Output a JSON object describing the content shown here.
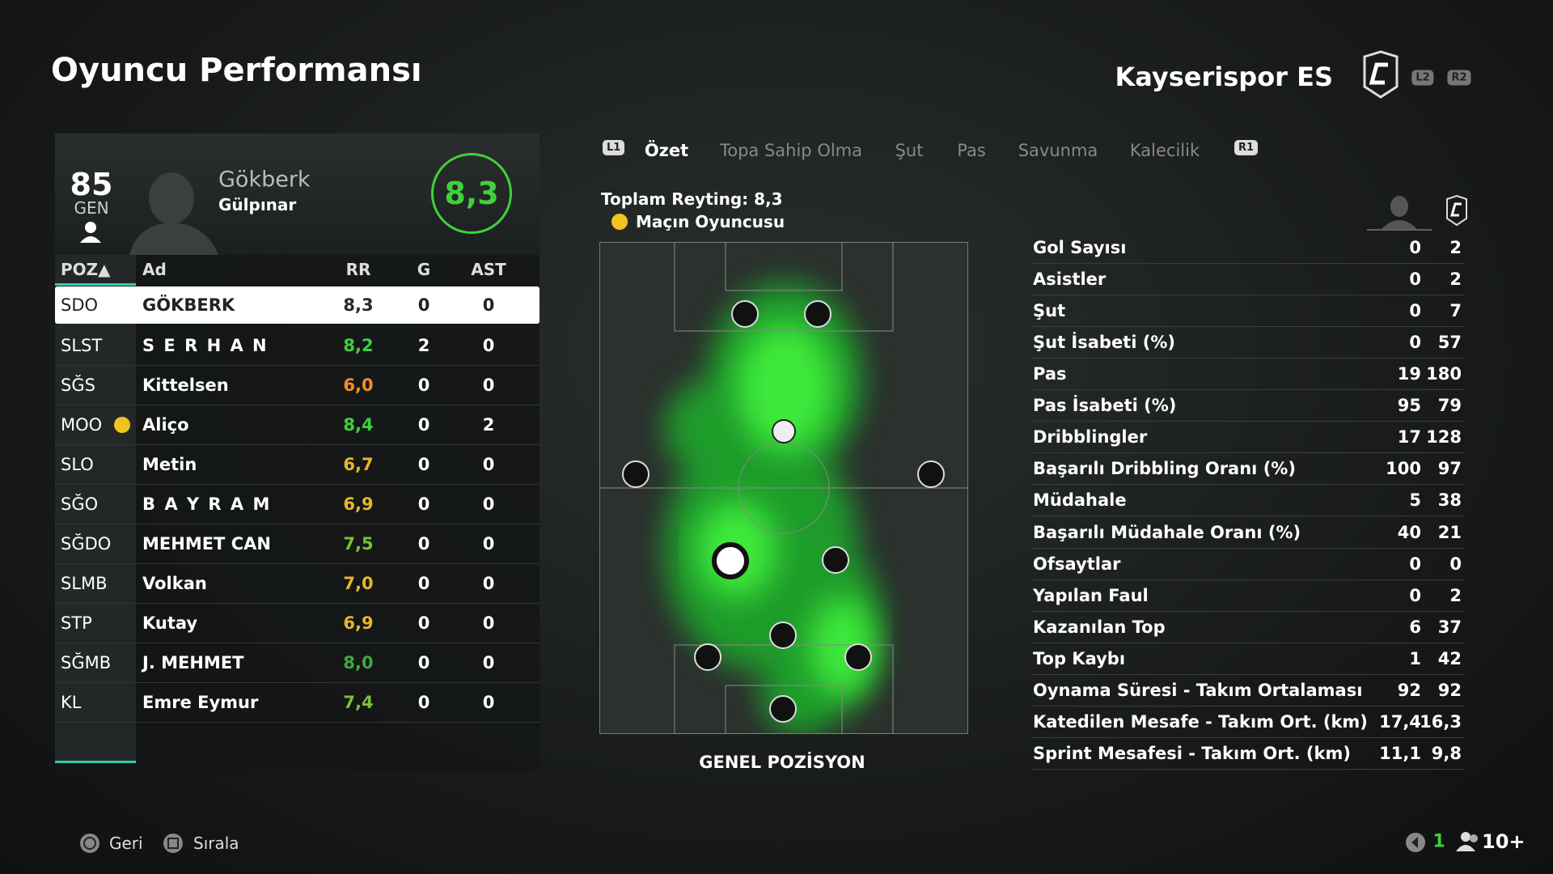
{
  "header": {
    "title": "Oyuncu Performansı",
    "team": "Kayserispor ES",
    "l2": "L2",
    "r2": "R2"
  },
  "player": {
    "overall": "85",
    "overall_label": "GEN",
    "first_name": "Gökberk",
    "last_name": "Gülpınar",
    "rating": "8,3"
  },
  "table": {
    "columns": [
      "POZ▲",
      "Ad",
      "RR",
      "G",
      "AST"
    ],
    "rows": [
      {
        "pos": "SDO",
        "name": "GÖKBERK",
        "rr": "8,3",
        "g": "0",
        "ast": "0",
        "color": "#2a2a2a"
      },
      {
        "pos": "SLST",
        "name": "S E R H A N",
        "rr": "8,2",
        "g": "2",
        "ast": "0",
        "color": "#3fd13a"
      },
      {
        "pos": "SĞS",
        "name": "Kittelsen",
        "rr": "6,0",
        "g": "0",
        "ast": "0",
        "color": "#f0902a"
      },
      {
        "pos": "MOO",
        "name": "Aliço",
        "rr": "8,4",
        "g": "0",
        "ast": "2",
        "color": "#3fd13a",
        "motm": true
      },
      {
        "pos": "SLO",
        "name": "Metin",
        "rr": "6,7",
        "g": "0",
        "ast": "0",
        "color": "#e8b62a"
      },
      {
        "pos": "SĞO",
        "name": "B A Y R A M",
        "rr": "6,9",
        "g": "0",
        "ast": "0",
        "color": "#e8b62a"
      },
      {
        "pos": "SĞDO",
        "name": "MEHMET CAN",
        "rr": "7,5",
        "g": "0",
        "ast": "0",
        "color": "#7bbf3a"
      },
      {
        "pos": "SLMB",
        "name": "Volkan",
        "rr": "7,0",
        "g": "0",
        "ast": "0",
        "color": "#e8b62a"
      },
      {
        "pos": "STP",
        "name": "Kutay",
        "rr": "6,9",
        "g": "0",
        "ast": "0",
        "color": "#e8b62a"
      },
      {
        "pos": "SĞMB",
        "name": "J. MEHMET",
        "rr": "8,0",
        "g": "0",
        "ast": "0",
        "color": "#3fa83a"
      },
      {
        "pos": "KL",
        "name": "Emre Eymur",
        "rr": "7,4",
        "g": "0",
        "ast": "0",
        "color": "#7bbf3a"
      }
    ]
  },
  "tabs": {
    "l1": "L1",
    "items": [
      "Özet",
      "Topa Sahip Olma",
      "Şut",
      "Pas",
      "Savunma",
      "Kalecilik"
    ],
    "r1": "R1"
  },
  "summary": {
    "total_rating": "Toplam Reyting: 8,3",
    "motm": "Maçın Oyuncusu"
  },
  "heatmap": {
    "caption": "GENEL POZİSYON"
  },
  "stats": {
    "rows": [
      [
        "Gol Sayısı",
        "0",
        "2"
      ],
      [
        "Asistler",
        "0",
        "2"
      ],
      [
        "Şut",
        "0",
        "7"
      ],
      [
        "Şut İsabeti (%)",
        "0",
        "57"
      ],
      [
        "Pas",
        "19",
        "180"
      ],
      [
        "Pas İsabeti (%)",
        "95",
        "79"
      ],
      [
        "Dribblingler",
        "17",
        "128"
      ],
      [
        "Başarılı Dribbling Oranı (%)",
        "100",
        "97"
      ],
      [
        "Müdahale",
        "5",
        "38"
      ],
      [
        "Başarılı Müdahale Oranı (%)",
        "40",
        "21"
      ],
      [
        "Ofsaytlar",
        "0",
        "0"
      ],
      [
        "Yapılan Faul",
        "0",
        "2"
      ],
      [
        "Kazanılan Top",
        "6",
        "37"
      ],
      [
        "Top Kaybı",
        "1",
        "42"
      ],
      [
        "Oynama Süresi - Takım Ortalaması",
        "92",
        "92"
      ],
      [
        "Katedilen Mesafe - Takım Ort. (km)",
        "17,4",
        "16,3"
      ],
      [
        "Sprint Mesafesi - Takım Ort. (km)",
        "11,1",
        "9,8"
      ]
    ]
  },
  "footer": {
    "back": "Geri",
    "sort": "Sırala",
    "count": "1",
    "players": "10+"
  }
}
